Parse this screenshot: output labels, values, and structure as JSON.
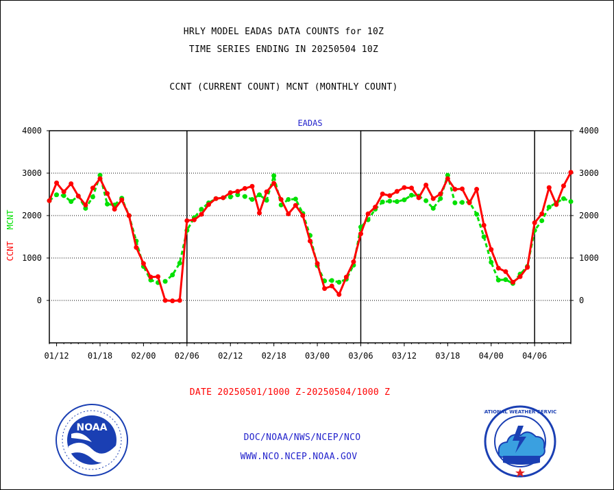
{
  "header": {
    "title_line1": "HRLY MODEL EADAS DATA COUNTS for 10Z",
    "title_line2": "TIME SERIES ENDING IN 20250504 10Z",
    "subtitle": "CCNT (CURRENT COUNT) MCNT (MONTHLY COUNT)"
  },
  "footer": {
    "date_range": "DATE 20250501/1000 Z-20250504/1000 Z",
    "credit_line1": "DOC/NOAA/NWS/NCEP/NCO",
    "credit_line2": "WWW.NCO.NCEP.NOAA.GOV"
  },
  "logos": {
    "noaa_text": "NOAA",
    "nws_text": "NATIONAL WEATHER SERVICE"
  },
  "colors": {
    "ccnt": "#ff0000",
    "mcnt": "#00e000",
    "chart_title": "#2222cc"
  },
  "chart_data": {
    "type": "line",
    "title": "EADAS",
    "ylabel_left": [
      "CCNT",
      "MCNT"
    ],
    "ylim": [
      -1000,
      4000
    ],
    "y_ticks": [
      0,
      1000,
      2000,
      3000,
      4000
    ],
    "y_tick_labels": [
      "0",
      "1000",
      "2000",
      "3000",
      "4000"
    ],
    "x_tick_labels": [
      "01/12",
      "01/18",
      "02/00",
      "02/06",
      "02/12",
      "02/18",
      "03/00",
      "03/06",
      "03/12",
      "03/18",
      "04/00",
      "04/06"
    ],
    "x_hours": [
      0,
      1,
      2,
      3,
      4,
      5,
      6,
      7,
      8,
      9,
      10,
      11,
      12,
      13,
      14,
      15,
      16,
      17,
      18,
      19,
      20,
      21,
      22,
      23,
      24,
      25,
      26,
      27,
      28,
      29,
      30,
      31,
      32,
      33,
      34,
      35,
      36,
      37,
      38,
      39,
      40,
      41,
      42,
      43,
      44,
      45,
      46,
      47,
      48,
      49,
      50,
      51,
      52,
      53,
      54,
      55,
      56,
      57,
      58,
      59,
      60,
      61,
      62,
      63,
      64,
      65,
      66,
      67,
      68,
      69,
      70,
      71,
      72
    ],
    "series": [
      {
        "name": "CCNT",
        "values": [
          2350,
          2770,
          2560,
          2750,
          2460,
          2250,
          2650,
          2870,
          2520,
          2150,
          2370,
          2000,
          1250,
          870,
          550,
          560,
          0,
          -10,
          0,
          1880,
          1900,
          2030,
          2260,
          2400,
          2420,
          2540,
          2570,
          2640,
          2690,
          2060,
          2560,
          2760,
          2380,
          2040,
          2240,
          2000,
          1400,
          870,
          280,
          340,
          140,
          550,
          910,
          1570,
          2040,
          2200,
          2510,
          2470,
          2570,
          2660,
          2650,
          2420,
          2720,
          2400,
          2510,
          2870,
          2620,
          2630,
          2300,
          2620,
          1770,
          1200,
          760,
          680,
          430,
          560,
          780,
          1830,
          2040,
          2660,
          2260,
          2700,
          3020
        ]
      },
      {
        "name": "MCNT",
        "values": [
          2350,
          2490,
          2470,
          2330,
          2460,
          2170,
          2440,
          2950,
          2270,
          2250,
          2410,
          2000,
          1400,
          800,
          480,
          420,
          450,
          600,
          880,
          1650,
          1950,
          2150,
          2300,
          2400,
          2420,
          2440,
          2490,
          2450,
          2380,
          2490,
          2360,
          2940,
          2250,
          2380,
          2390,
          2050,
          1530,
          820,
          460,
          470,
          430,
          500,
          830,
          1730,
          1900,
          2150,
          2320,
          2340,
          2330,
          2370,
          2480,
          2460,
          2350,
          2170,
          2400,
          2950,
          2300,
          2310,
          2320,
          2030,
          1500,
          900,
          480,
          490,
          400,
          620,
          800,
          1650,
          1880,
          2200,
          2300,
          2400,
          2330
        ]
      }
    ],
    "grid": true,
    "legend": "none"
  }
}
